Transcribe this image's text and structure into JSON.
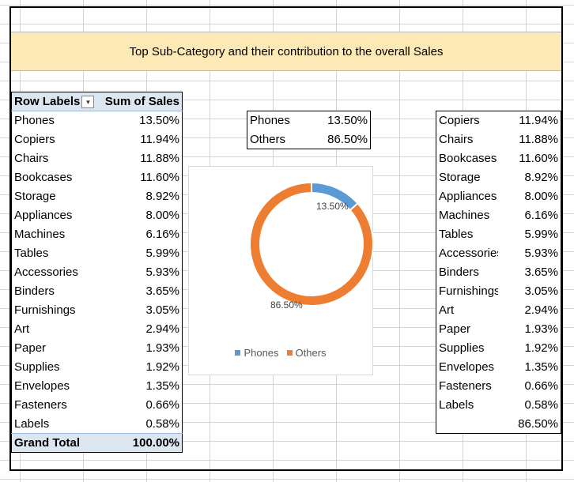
{
  "title": "Top Sub-Category and their contribution to the overall Sales",
  "colors": {
    "phones": "#5b9bd5",
    "others": "#ed7d31",
    "title_band": "#fde9b6",
    "pivot_header": "#dce6f1"
  },
  "pivot": {
    "header_label": "Row Labels",
    "header_value": "Sum of Sales",
    "filter_icon": "sort-filter-dropdown-icon",
    "rows": [
      {
        "label": "Phones",
        "value": "13.50%"
      },
      {
        "label": "Copiers",
        "value": "11.94%"
      },
      {
        "label": "Chairs",
        "value": "11.88%"
      },
      {
        "label": "Bookcases",
        "value": "11.60%"
      },
      {
        "label": "Storage",
        "value": "8.92%"
      },
      {
        "label": "Appliances",
        "value": "8.00%"
      },
      {
        "label": "Machines",
        "value": "6.16%"
      },
      {
        "label": "Tables",
        "value": "5.99%"
      },
      {
        "label": "Accessories",
        "value": "5.93%"
      },
      {
        "label": "Binders",
        "value": "3.65%"
      },
      {
        "label": "Furnishings",
        "value": "3.05%"
      },
      {
        "label": "Art",
        "value": "2.94%"
      },
      {
        "label": "Paper",
        "value": "1.93%"
      },
      {
        "label": "Supplies",
        "value": "1.92%"
      },
      {
        "label": "Envelopes",
        "value": "1.35%"
      },
      {
        "label": "Fasteners",
        "value": "0.66%"
      },
      {
        "label": "Labels",
        "value": "0.58%"
      }
    ],
    "total_label": "Grand Total",
    "total_value": "100.00%"
  },
  "summary": {
    "rows": [
      {
        "label": "Phones",
        "value": "13.50%"
      },
      {
        "label": "Others",
        "value": "86.50%"
      }
    ]
  },
  "right_list": {
    "rows": [
      {
        "label": "Copiers",
        "value": "11.94%"
      },
      {
        "label": "Chairs",
        "value": "11.88%"
      },
      {
        "label": "Bookcases",
        "value": "11.60%"
      },
      {
        "label": "Storage",
        "value": "8.92%"
      },
      {
        "label": "Appliances",
        "value": "8.00%"
      },
      {
        "label": "Machines",
        "value": "6.16%"
      },
      {
        "label": "Tables",
        "value": "5.99%"
      },
      {
        "label": "Accessories",
        "value": "5.93%"
      },
      {
        "label": "Binders",
        "value": "3.65%"
      },
      {
        "label": "Furnishings",
        "value": "3.05%"
      },
      {
        "label": "Art",
        "value": "2.94%"
      },
      {
        "label": "Paper",
        "value": "1.93%"
      },
      {
        "label": "Supplies",
        "value": "1.92%"
      },
      {
        "label": "Envelopes",
        "value": "1.35%"
      },
      {
        "label": "Fasteners",
        "value": "0.66%"
      },
      {
        "label": "Labels",
        "value": "0.58%"
      },
      {
        "label": "",
        "value": "86.50%"
      }
    ]
  },
  "chart_data": {
    "type": "pie",
    "donut": true,
    "categories": [
      "Phones",
      "Others"
    ],
    "values": [
      13.5,
      86.5
    ],
    "data_labels": [
      "13.50%",
      "86.50%"
    ],
    "legend_position": "bottom",
    "title": ""
  }
}
